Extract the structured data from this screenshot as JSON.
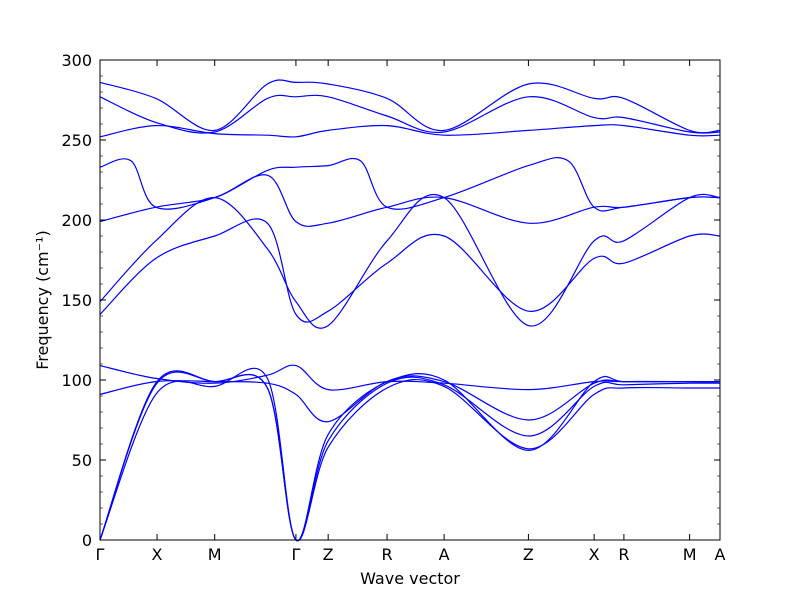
{
  "chart_data": {
    "type": "line",
    "title": "",
    "xlabel": "Wave vector",
    "ylabel": "Frequency (cm⁻¹)",
    "ylim": [
      0,
      300
    ],
    "yticks": [
      0,
      50,
      100,
      150,
      200,
      250,
      300
    ],
    "xlim": [
      0,
      1
    ],
    "x_tick_labels": [
      "Γ",
      "X",
      "M",
      "Γ",
      "Z",
      "R",
      "A",
      "Z",
      "X",
      "R",
      "M",
      "A"
    ],
    "x_tick_positions": [
      0.0,
      0.092,
      0.185,
      0.316,
      0.368,
      0.463,
      0.555,
      0.691,
      0.797,
      0.845,
      0.951,
      1.0
    ],
    "grid": false,
    "legend": "none",
    "line_color": "#0000ff",
    "series": [
      {
        "x": [
          0.0,
          0.09,
          0.185,
          0.27,
          0.316,
          0.368,
          0.463,
          0.555,
          0.691,
          0.797,
          0.845,
          0.951,
          1.0
        ],
        "y": [
          0,
          98,
          99,
          95,
          0,
          58,
          95,
          96,
          57,
          91,
          95,
          95,
          95
        ]
      },
      {
        "x": [
          0.0,
          0.09,
          0.185,
          0.27,
          0.316,
          0.368,
          0.463,
          0.555,
          0.691,
          0.797,
          0.845,
          0.951,
          1.0
        ],
        "y": [
          0,
          97,
          99,
          95,
          0,
          62,
          98,
          97,
          65,
          96,
          97,
          98,
          98
        ]
      },
      {
        "x": [
          0.0,
          0.09,
          0.185,
          0.27,
          0.316,
          0.368,
          0.463,
          0.555,
          0.691,
          0.797,
          0.845,
          0.951,
          1.0
        ],
        "y": [
          0,
          91,
          96,
          101,
          0,
          66,
          99,
          99,
          75,
          98,
          99,
          99,
          99
        ]
      },
      {
        "x": [
          0.0,
          0.09,
          0.185,
          0.27,
          0.316,
          0.368,
          0.463,
          0.555,
          0.691,
          0.797,
          0.845,
          0.951,
          1.0
        ],
        "y": [
          91,
          99,
          99,
          98,
          91,
          74,
          99,
          100,
          56,
          99,
          99,
          99,
          99
        ]
      },
      {
        "x": [
          0.0,
          0.09,
          0.185,
          0.27,
          0.316,
          0.368,
          0.463,
          0.555,
          0.691,
          0.797,
          0.845,
          0.951,
          1.0
        ],
        "y": [
          109,
          101,
          98,
          103,
          109,
          94,
          99,
          98,
          94,
          99,
          99,
          99,
          99
        ]
      },
      {
        "x": [
          0.0,
          0.09,
          0.185,
          0.27,
          0.316,
          0.368,
          0.463,
          0.555,
          0.691,
          0.797,
          0.845,
          0.951,
          1.0
        ],
        "y": [
          141,
          176,
          190,
          198,
          141,
          143,
          173,
          190,
          143,
          176,
          173,
          190,
          190
        ]
      },
      {
        "x": [
          0.0,
          0.09,
          0.185,
          0.27,
          0.316,
          0.368,
          0.463,
          0.555,
          0.691,
          0.797,
          0.845,
          0.951,
          1.0
        ],
        "y": [
          149,
          187,
          214,
          182,
          149,
          134,
          187,
          214,
          134,
          187,
          187,
          214,
          214
        ]
      },
      {
        "x": [
          0.0,
          0.09,
          0.185,
          0.27,
          0.316,
          0.368,
          0.463,
          0.555,
          0.691,
          0.797,
          0.845,
          0.951,
          1.0
        ],
        "y": [
          199,
          208,
          214,
          228,
          199,
          198,
          208,
          214,
          198,
          208,
          208,
          214,
          214
        ]
      },
      {
        "x": [
          0.0,
          0.05,
          0.09,
          0.185,
          0.27,
          0.316,
          0.368,
          0.42,
          0.463,
          0.555,
          0.691,
          0.755,
          0.797,
          0.845,
          0.951,
          1.0
        ],
        "y": [
          233,
          237,
          208,
          214,
          231,
          233,
          234,
          237,
          208,
          214,
          234,
          237,
          208,
          208,
          214,
          214
        ]
      },
      {
        "x": [
          0.0,
          0.09,
          0.185,
          0.27,
          0.316,
          0.368,
          0.463,
          0.555,
          0.691,
          0.797,
          0.845,
          0.951,
          1.0
        ],
        "y": [
          252,
          259,
          254,
          253,
          252,
          256,
          259,
          253,
          256,
          259,
          259,
          253,
          253
        ]
      },
      {
        "x": [
          0.0,
          0.09,
          0.185,
          0.27,
          0.316,
          0.368,
          0.463,
          0.555,
          0.691,
          0.797,
          0.845,
          0.951,
          1.0
        ],
        "y": [
          277,
          261,
          255,
          276,
          277,
          277,
          265,
          255,
          277,
          264,
          264,
          255,
          255
        ]
      },
      {
        "x": [
          0.0,
          0.09,
          0.185,
          0.27,
          0.316,
          0.368,
          0.463,
          0.555,
          0.691,
          0.797,
          0.845,
          0.951,
          1.0
        ],
        "y": [
          286,
          276,
          256,
          285,
          286,
          285,
          276,
          256,
          285,
          276,
          276,
          256,
          256
        ]
      }
    ]
  }
}
